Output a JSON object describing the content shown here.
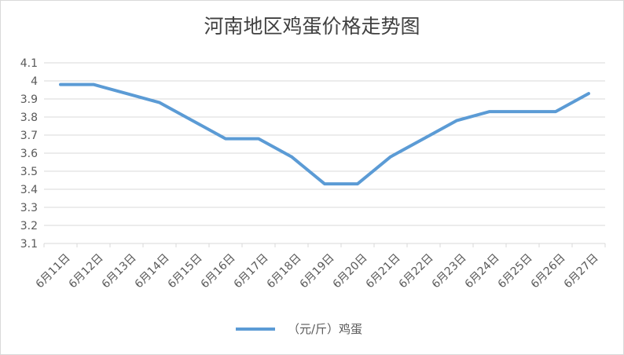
{
  "chart_data": {
    "type": "line",
    "title": "河南地区鸡蛋价格走势图",
    "categories": [
      "6月11日",
      "6月12日",
      "6月13日",
      "6月14日",
      "6月15日",
      "6月16日",
      "6月17日",
      "6月18日",
      "6月19日",
      "6月20日",
      "6月21日",
      "6月22日",
      "6月23日",
      "6月24日",
      "6月25日",
      "6月26日",
      "6月27日"
    ],
    "series": [
      {
        "name": "（元/斤）鸡蛋",
        "color": "#5b9bd5",
        "values": [
          3.98,
          3.98,
          3.93,
          3.88,
          3.78,
          3.68,
          3.68,
          3.58,
          3.43,
          3.43,
          3.58,
          3.68,
          3.78,
          3.83,
          3.83,
          3.83,
          3.93
        ]
      }
    ],
    "yticks": [
      "3.1",
      "3.2",
      "3.3",
      "3.4",
      "3.5",
      "3.6",
      "3.7",
      "3.8",
      "3.9",
      "4",
      "4.1"
    ],
    "ylim": [
      3.1,
      4.1
    ],
    "grid": true,
    "legend_position": "bottom"
  }
}
